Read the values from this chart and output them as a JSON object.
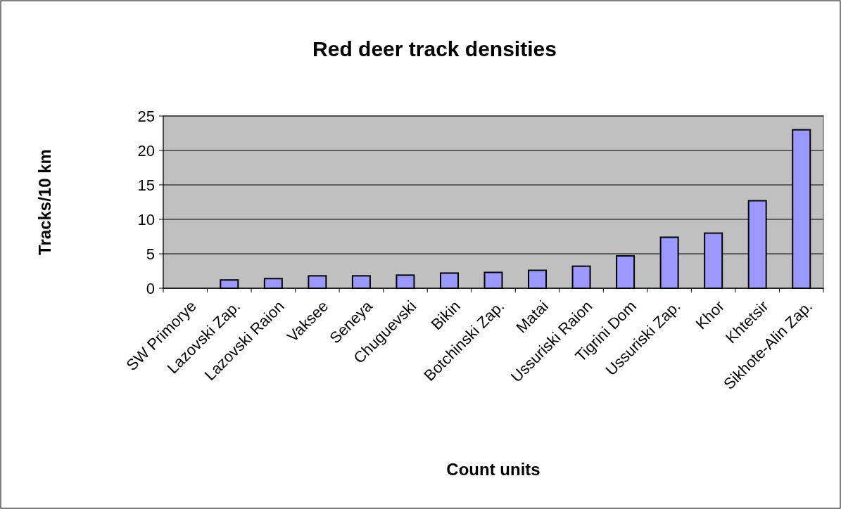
{
  "chart_data": {
    "type": "bar",
    "title": "Red deer track densities",
    "xlabel": "Count units",
    "ylabel": "Tracks/10 km",
    "categories": [
      "SW Primorye",
      "Lazovski Zap.",
      "Lazovski Raion",
      "Vaksee",
      "Seneya",
      "Chuguevski",
      "Bikin",
      "Botchinski Zap.",
      "Matai",
      "Ussuriski Raion",
      "Tigrini Dom",
      "Ussuriski Zap.",
      "Khor",
      "Khtetsir",
      "Sikhote-Alin Zap."
    ],
    "values": [
      0,
      1.2,
      1.4,
      1.8,
      1.8,
      1.9,
      2.2,
      2.3,
      2.6,
      3.2,
      4.7,
      7.4,
      8.0,
      12.7,
      23.0
    ],
    "color": "#9999ff",
    "ylim": [
      0,
      25
    ],
    "yticks": [
      0,
      5,
      10,
      15,
      20,
      25
    ],
    "grid": "y"
  }
}
